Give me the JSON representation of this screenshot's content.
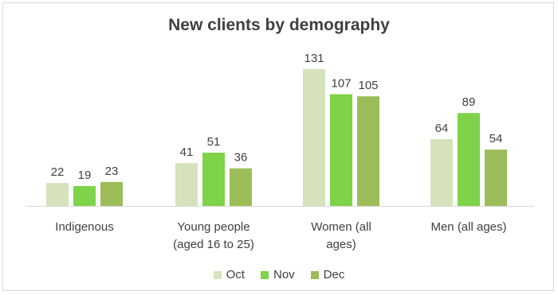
{
  "chart_data": {
    "type": "bar",
    "title": "New clients by demography",
    "categories": [
      [
        "Indigenous"
      ],
      [
        "Young people",
        "(aged 16 to 25)"
      ],
      [
        "Women (all",
        "ages)"
      ],
      [
        "Men (all ages)"
      ]
    ],
    "series": [
      {
        "name": "Oct",
        "color": "#d5e2bc",
        "values": [
          22,
          41,
          131,
          64
        ]
      },
      {
        "name": "Nov",
        "color": "#7ed348",
        "values": [
          19,
          51,
          107,
          89
        ]
      },
      {
        "name": "Dec",
        "color": "#9cbc59",
        "values": [
          23,
          36,
          105,
          54
        ]
      }
    ],
    "ylim": [
      0,
      140
    ],
    "grid": false,
    "legend_position": "bottom"
  }
}
